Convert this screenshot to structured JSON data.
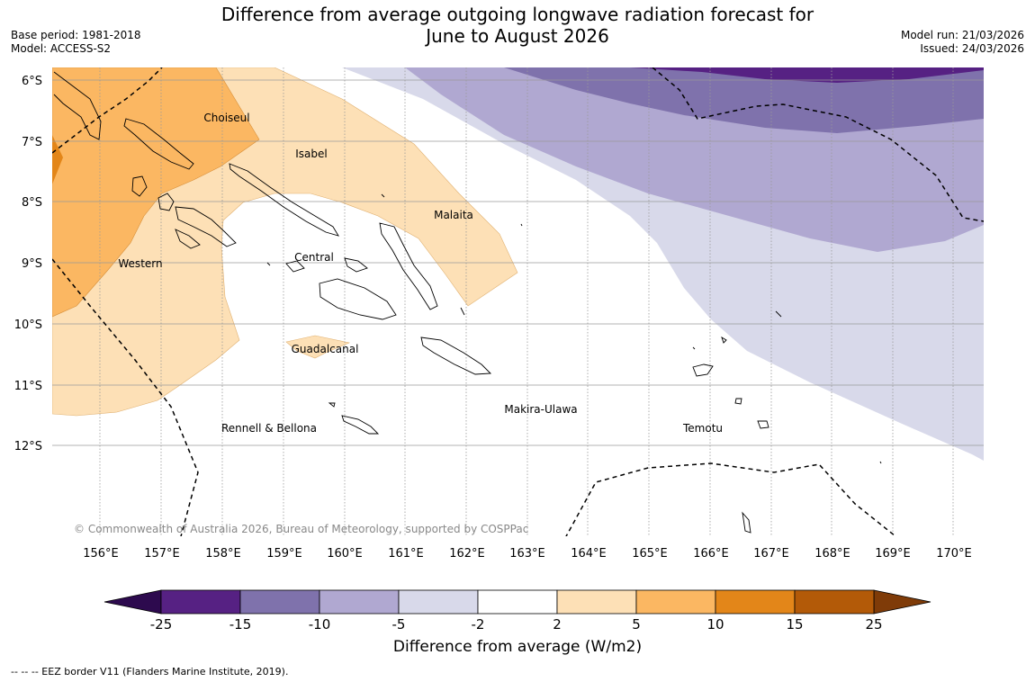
{
  "title": {
    "line1": "Difference from average outgoing longwave radiation forecast for",
    "line2": "June to August 2026"
  },
  "meta": {
    "base_period": "Base period: 1981-2018",
    "model": "Model: ACCESS-S2",
    "model_run": "Model run: 21/03/2026",
    "issued": "Issued: 24/03/2026"
  },
  "map": {
    "lat_labels": [
      "6°S",
      "7°S",
      "8°S",
      "9°S",
      "10°S",
      "11°S",
      "12°S"
    ],
    "lon_labels": [
      "156°E",
      "157°E",
      "158°E",
      "159°E",
      "160°E",
      "161°E",
      "162°E",
      "163°E",
      "164°E",
      "165°E",
      "166°E",
      "167°E",
      "168°E",
      "169°E",
      "170°E"
    ],
    "regions": [
      "Choiseul",
      "Isabel",
      "Malaita",
      "Central",
      "Western",
      "Guadalcanal",
      "Rennell & Bellona",
      "Makira-Ulawa",
      "Temotu"
    ],
    "copyright": "© Commonwealth of Australia 2026, Bureau of Meteorology, supported by COSPPac"
  },
  "colorbar": {
    "ticks": [
      "-25",
      "-15",
      "-10",
      "-5",
      "-2",
      "2",
      "5",
      "10",
      "15",
      "25"
    ],
    "colors": [
      "#562183",
      "#7f72ac",
      "#b0a8d1",
      "#d8d9ea",
      "#ffffff",
      "#fde0b6",
      "#fbb762",
      "#e38619",
      "#b35a08"
    ],
    "under_color": "#2d0a4e",
    "over_color": "#7f3b08",
    "title": "Difference from average (W/m2)"
  },
  "footer": "--  --  -- EEZ border V11 (Flanders Marine Institute, 2019)."
}
